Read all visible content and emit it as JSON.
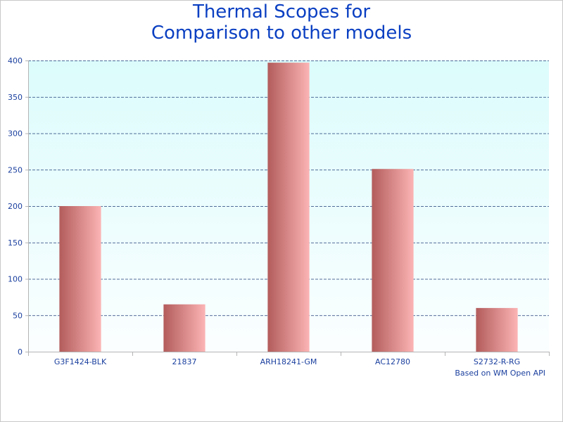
{
  "title_lines": [
    "Thermal Scopes for",
    "Comparison to other models"
  ],
  "credit": "Based on WM Open API",
  "colors": {
    "title": "#0a3fc2",
    "axis_text": "#1a3f9e",
    "plot_bg_top": "#dcfcfc",
    "plot_bg_bottom": "#fbfeff",
    "grid": "#1e3c78",
    "bar_dark": "#b35c5c",
    "bar_light": "#fcb4b4"
  },
  "chart_data": {
    "type": "bar",
    "categories": [
      "G3F1424-BLK",
      "21837",
      "ARH18241-GM",
      "AC12780",
      "S2732-R-RG"
    ],
    "values": [
      200,
      65,
      397,
      251,
      60
    ],
    "title": "Thermal Scopes for Comparison to other models",
    "xlabel": "",
    "ylabel": "",
    "ylim": [
      0,
      400
    ],
    "yticks": [
      0,
      50,
      100,
      150,
      200,
      250,
      300,
      350,
      400
    ],
    "grid": true,
    "legend": "none"
  }
}
